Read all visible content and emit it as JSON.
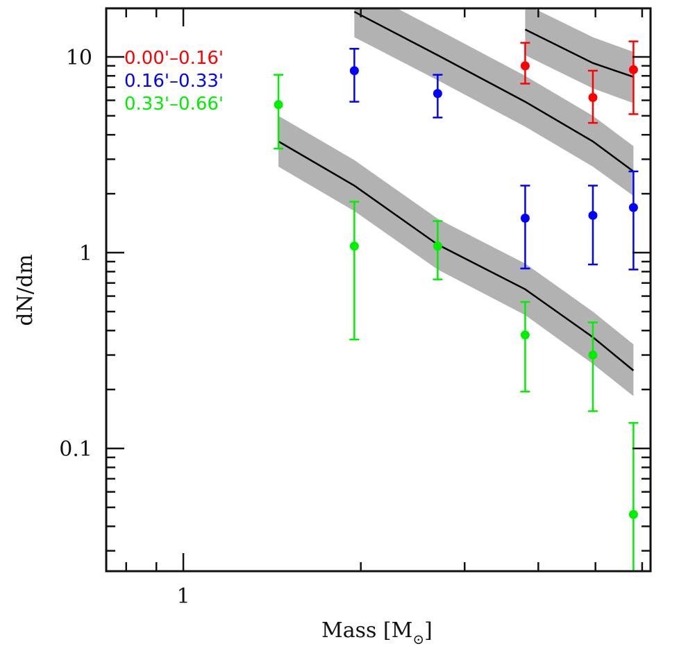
{
  "chart_data": {
    "type": "scatter",
    "title": "",
    "xlabel": "Mass [M",
    "xlabel_subscript": "⊙",
    "xlabel_close": "]",
    "ylabel": "dN/dm",
    "xscale": "log",
    "yscale": "log",
    "xlim": [
      0.74,
      6.2
    ],
    "ylim": [
      0.0236,
      17.7
    ],
    "grid": false,
    "x_tick_labels": [
      {
        "value": 1,
        "label": "1"
      }
    ],
    "y_tick_labels": [
      {
        "value": 10,
        "label": "10"
      },
      {
        "value": 1,
        "label": "1"
      },
      {
        "value": 0.1,
        "label": "0.1"
      }
    ],
    "x_major_ticks": [
      1
    ],
    "x_minor_ticks": [
      0.8,
      0.9,
      2,
      3,
      4,
      5,
      6
    ],
    "legend_position": "top-left",
    "series": [
      {
        "name": "0.00'–0.16'",
        "color": "#ff0000",
        "points": [
          {
            "x": 3.8,
            "y": 9.0,
            "ylo": 7.3,
            "yhi": 11.8
          },
          {
            "x": 4.95,
            "y": 6.2,
            "ylo": 4.6,
            "yhi": 8.5
          },
          {
            "x": 5.8,
            "y": 8.6,
            "ylo": 5.1,
            "yhi": 12.0
          }
        ],
        "model": {
          "x": [
            3.8,
            4.95,
            5.8
          ],
          "y": [
            13.8,
            9.3,
            7.9
          ],
          "band_lo": [
            10.2,
            6.9,
            5.8
          ],
          "band_hi": [
            18.6,
            12.6,
            10.6
          ]
        }
      },
      {
        "name": "0.16'–0.33'",
        "color": "#0000ff",
        "points": [
          {
            "x": 1.95,
            "y": 8.5,
            "ylo": 5.9,
            "yhi": 11.0
          },
          {
            "x": 2.7,
            "y": 6.5,
            "ylo": 4.9,
            "yhi": 8.1
          },
          {
            "x": 3.8,
            "y": 1.5,
            "ylo": 0.83,
            "yhi": 2.2
          },
          {
            "x": 4.95,
            "y": 1.55,
            "ylo": 0.87,
            "yhi": 2.2
          },
          {
            "x": 5.8,
            "y": 1.7,
            "ylo": 0.82,
            "yhi": 2.6
          }
        ],
        "model": {
          "x": [
            1.95,
            2.7,
            3.8,
            4.95,
            5.8
          ],
          "y": [
            17.0,
            10.2,
            5.9,
            3.7,
            2.6
          ],
          "band_lo": [
            12.6,
            7.6,
            4.4,
            2.75,
            1.95
          ],
          "band_hi": [
            23.0,
            13.8,
            8.0,
            5.0,
            3.5
          ]
        }
      },
      {
        "name": "0.33'–0.66'",
        "color": "#00ee00",
        "points": [
          {
            "x": 1.45,
            "y": 5.7,
            "ylo": 3.4,
            "yhi": 8.1
          },
          {
            "x": 1.95,
            "y": 1.08,
            "ylo": 0.36,
            "yhi": 1.82
          },
          {
            "x": 2.7,
            "y": 1.08,
            "ylo": 0.73,
            "yhi": 1.45
          },
          {
            "x": 3.8,
            "y": 0.38,
            "ylo": 0.195,
            "yhi": 0.56
          },
          {
            "x": 4.95,
            "y": 0.3,
            "ylo": 0.155,
            "yhi": 0.44
          },
          {
            "x": 5.8,
            "y": 0.046,
            "ylo": 0.02,
            "yhi": 0.135
          }
        ],
        "model": {
          "x": [
            1.45,
            1.95,
            2.7,
            3.8,
            4.95,
            5.8
          ],
          "y": [
            3.7,
            2.2,
            1.1,
            0.65,
            0.37,
            0.25
          ],
          "band_lo": [
            2.75,
            1.63,
            0.82,
            0.48,
            0.27,
            0.185
          ],
          "band_hi": [
            5.0,
            2.97,
            1.49,
            0.88,
            0.5,
            0.34
          ]
        }
      }
    ]
  }
}
